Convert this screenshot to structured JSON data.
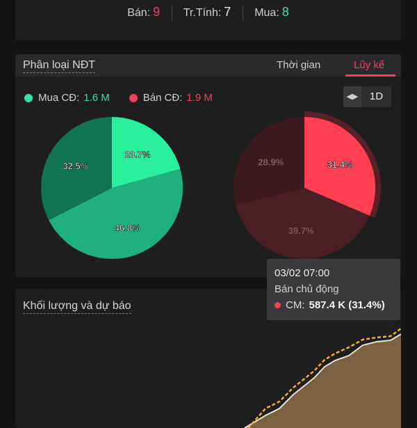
{
  "counts": {
    "sell_label": "Bán:",
    "sell_value": "9",
    "neutral_label": "Tr.Tính:",
    "neutral_value": "7",
    "buy_label": "Mua:",
    "buy_value": "8"
  },
  "investor_panel": {
    "title": "Phân loại NĐT",
    "tabs": [
      {
        "label": "Thời gian",
        "active": false
      },
      {
        "label": "Lũy kế",
        "active": true
      }
    ],
    "legend": {
      "buy_label": "Mua CĐ:",
      "buy_value": "1.6 M",
      "sell_label": "Bán CĐ:",
      "sell_value": "1.9 M"
    },
    "period": "1D",
    "colors": {
      "buy": "#36e0a5",
      "sell": "#f1415a"
    }
  },
  "chart_data": [
    {
      "type": "pie",
      "name": "Mua CĐ",
      "slices": [
        {
          "label": "20.7%",
          "value": 20.7,
          "color": "#2af09e"
        },
        {
          "label": "46.8%",
          "value": 46.8,
          "color": "#1fb07e"
        },
        {
          "label": "32.5%",
          "value": 32.5,
          "color": "#0f7552"
        }
      ]
    },
    {
      "type": "pie",
      "name": "Bán CĐ",
      "highlighted": "31.4%",
      "slices": [
        {
          "label": "31.4%",
          "value": 31.4,
          "color": "#ff3f52"
        },
        {
          "label": "39.7%",
          "value": 39.7,
          "color": "#4a1e25"
        },
        {
          "label": "28.9%",
          "value": 28.9,
          "color": "#3a1a1f"
        }
      ]
    }
  ],
  "tooltip": {
    "time": "03/02 07:00",
    "type": "Bán chủ động",
    "series_label": "CM:",
    "series_value": "587.4 K (31.4%)"
  },
  "volume_panel": {
    "title": "Khối lượng và dự báo"
  }
}
